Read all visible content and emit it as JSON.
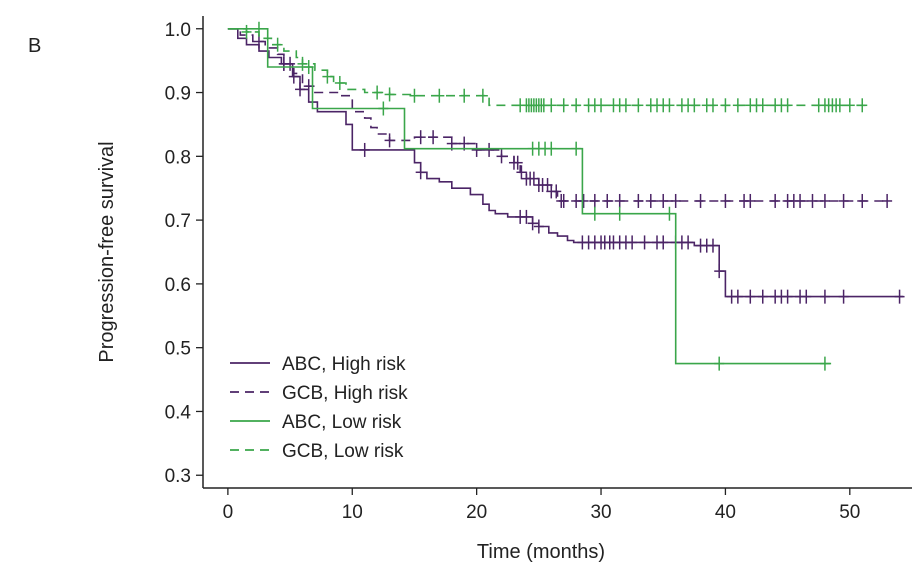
{
  "panel_label": "B",
  "chart_data": {
    "type": "line",
    "step": true,
    "xlabel": "Time (months)",
    "ylabel": "Progression-free survival",
    "xlim": [
      -2,
      55
    ],
    "ylim": [
      0.28,
      1.02
    ],
    "xticks": [
      {
        "value": 0,
        "label": "0"
      },
      {
        "value": 10,
        "label": "10"
      },
      {
        "value": 20,
        "label": "20"
      },
      {
        "value": 30,
        "label": "30"
      },
      {
        "value": 40,
        "label": "40"
      },
      {
        "value": 50,
        "label": "50"
      }
    ],
    "yticks": [
      {
        "value": 1.0,
        "label": "1.0"
      },
      {
        "value": 0.9,
        "label": "0.9"
      },
      {
        "value": 0.8,
        "label": "0.8"
      },
      {
        "value": 0.7,
        "label": "0.7"
      },
      {
        "value": 0.6,
        "label": "0.6"
      },
      {
        "value": 0.5,
        "label": "0.5"
      },
      {
        "value": 0.4,
        "label": "0.4"
      },
      {
        "value": 0.3,
        "label": "0.3"
      }
    ],
    "grid": false,
    "legend": {
      "position": "bottom-left"
    },
    "series": [
      {
        "name": "ABC, High risk",
        "color": "#4b2466",
        "dash": "solid",
        "points": [
          [
            0,
            1.0
          ],
          [
            0.8,
            0.985
          ],
          [
            1.5,
            0.975
          ],
          [
            2.5,
            0.965
          ],
          [
            3.3,
            0.955
          ],
          [
            4.3,
            0.945
          ],
          [
            5.2,
            0.925
          ],
          [
            5.8,
            0.905
          ],
          [
            6.5,
            0.885
          ],
          [
            7.2,
            0.87
          ],
          [
            9.5,
            0.85
          ],
          [
            10.0,
            0.81
          ],
          [
            14.0,
            0.81
          ],
          [
            15.0,
            0.79
          ],
          [
            15.5,
            0.775
          ],
          [
            16.0,
            0.765
          ],
          [
            17.0,
            0.76
          ],
          [
            18.0,
            0.75
          ],
          [
            19.5,
            0.74
          ],
          [
            20.5,
            0.725
          ],
          [
            21.0,
            0.715
          ],
          [
            21.5,
            0.71
          ],
          [
            22.5,
            0.705
          ],
          [
            24.5,
            0.695
          ],
          [
            25.0,
            0.69
          ],
          [
            25.8,
            0.68
          ],
          [
            26.5,
            0.675
          ],
          [
            27.3,
            0.668
          ],
          [
            27.8,
            0.665
          ],
          [
            37.5,
            0.66
          ],
          [
            39.5,
            0.62
          ],
          [
            40.0,
            0.58
          ],
          [
            54.3,
            0.58
          ]
        ],
        "censor": [
          4.5,
          5.3,
          5.8,
          11,
          15.5,
          23.5,
          24.0,
          24.5,
          25.0,
          28.5,
          29.0,
          29.5,
          30.0,
          30.3,
          30.7,
          31.0,
          31.5,
          32.0,
          32.5,
          33.5,
          34.5,
          35.0,
          36.0,
          36.5,
          37.0,
          38.0,
          38.5,
          39.0,
          39.5,
          40.5,
          41.0,
          42.0,
          43.0,
          44.0,
          44.5,
          45.0,
          46.0,
          46.5,
          48.0,
          49.5,
          54.0
        ]
      },
      {
        "name": "GCB, High risk",
        "color": "#4b2466",
        "dash": "dashed",
        "points": [
          [
            0,
            1.0
          ],
          [
            1.0,
            0.99
          ],
          [
            2.0,
            0.98
          ],
          [
            3.0,
            0.97
          ],
          [
            4.0,
            0.96
          ],
          [
            4.5,
            0.945
          ],
          [
            5.3,
            0.93
          ],
          [
            6.0,
            0.91
          ],
          [
            7.0,
            0.9
          ],
          [
            9.0,
            0.895
          ],
          [
            10.0,
            0.87
          ],
          [
            11.0,
            0.86
          ],
          [
            11.5,
            0.845
          ],
          [
            12.0,
            0.835
          ],
          [
            13.0,
            0.825
          ],
          [
            15.0,
            0.83
          ],
          [
            18.0,
            0.82
          ],
          [
            20.0,
            0.81
          ],
          [
            22.0,
            0.8
          ],
          [
            23.0,
            0.79
          ],
          [
            23.5,
            0.775
          ],
          [
            24.0,
            0.765
          ],
          [
            25.0,
            0.755
          ],
          [
            26.0,
            0.745
          ],
          [
            26.5,
            0.73
          ],
          [
            53.0,
            0.73
          ]
        ],
        "censor": [
          2.5,
          4.5,
          5.0,
          6.5,
          13.0,
          15.5,
          16.5,
          18.0,
          19.0,
          20.0,
          21.0,
          22.0,
          23.0,
          23.3,
          23.6,
          24.0,
          24.3,
          24.6,
          25.0,
          25.3,
          25.7,
          26.0,
          26.4,
          26.8,
          27.0,
          28.0,
          28.6,
          29.5,
          30.5,
          31.5,
          33.0,
          34.0,
          35.0,
          36.0,
          38.0,
          40.0,
          41.5,
          42.0,
          44.0,
          45.0,
          45.5,
          46.0,
          47.0,
          48.0,
          49.5,
          51.0,
          53.0
        ]
      },
      {
        "name": "ABC, Low risk",
        "color": "#3aa64a",
        "dash": "solid",
        "points": [
          [
            0,
            1.0
          ],
          [
            3.0,
            1.0
          ],
          [
            3.2,
            0.94
          ],
          [
            6.5,
            0.94
          ],
          [
            6.8,
            0.875
          ],
          [
            14.0,
            0.875
          ],
          [
            14.2,
            0.812
          ],
          [
            28.3,
            0.812
          ],
          [
            28.5,
            0.71
          ],
          [
            35.8,
            0.71
          ],
          [
            36.0,
            0.475
          ],
          [
            48.5,
            0.475
          ]
        ],
        "censor": [
          2.5,
          6.5,
          12.5,
          24.5,
          25.0,
          25.5,
          26.0,
          28.0,
          29.5,
          31.5,
          35.5,
          39.5,
          48.0
        ]
      },
      {
        "name": "GCB, Low risk",
        "color": "#3aa64a",
        "dash": "dashed",
        "points": [
          [
            0,
            1.0
          ],
          [
            1.5,
            0.995
          ],
          [
            2.5,
            0.985
          ],
          [
            3.5,
            0.975
          ],
          [
            4.5,
            0.965
          ],
          [
            5.5,
            0.955
          ],
          [
            6.0,
            0.945
          ],
          [
            7.0,
            0.935
          ],
          [
            8.0,
            0.925
          ],
          [
            8.5,
            0.915
          ],
          [
            9.5,
            0.905
          ],
          [
            11.0,
            0.9
          ],
          [
            13.0,
            0.897
          ],
          [
            15.0,
            0.895
          ],
          [
            17.0,
            0.895
          ],
          [
            21.0,
            0.88
          ],
          [
            51.5,
            0.88
          ]
        ],
        "censor": [
          1.5,
          4.0,
          6.0,
          8.0,
          9.0,
          12.0,
          13.0,
          15.0,
          17.0,
          19.0,
          20.5,
          23.5,
          24.0,
          24.2,
          24.4,
          24.6,
          24.8,
          25.0,
          25.2,
          25.4,
          26.0,
          27.0,
          28.0,
          29.0,
          29.5,
          30.0,
          31.0,
          31.5,
          32.0,
          33.0,
          34.0,
          34.5,
          35.0,
          35.5,
          36.5,
          37.0,
          37.5,
          38.5,
          39.0,
          40.0,
          41.0,
          42.0,
          42.5,
          43.0,
          44.0,
          44.5,
          45.0,
          47.5,
          48.0,
          48.3,
          48.6,
          48.9,
          49.2,
          50.0,
          51.0
        ]
      }
    ]
  }
}
